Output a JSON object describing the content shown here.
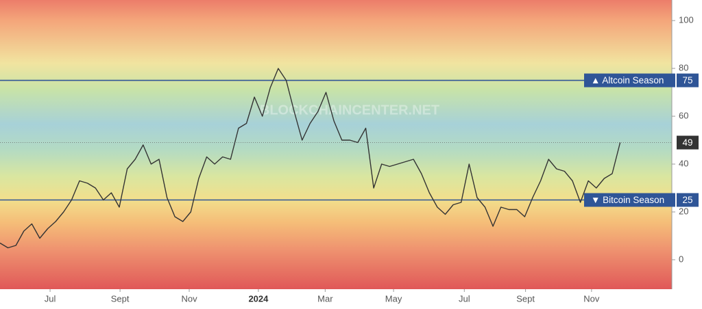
{
  "chart_data": {
    "type": "line",
    "watermark": "BLOCKCHAINCENTER.NET",
    "values": [
      7,
      5,
      6,
      12,
      15,
      9,
      13,
      16,
      20,
      25,
      33,
      32,
      30,
      25,
      28,
      22,
      38,
      42,
      48,
      40,
      42,
      26,
      18,
      16,
      20,
      34,
      43,
      40,
      43,
      42,
      55,
      57,
      68,
      60,
      72,
      80,
      75,
      62,
      50,
      57,
      62,
      70,
      58,
      50,
      50,
      49,
      55,
      30,
      40,
      39,
      40,
      41,
      42,
      36,
      28,
      22,
      19,
      23,
      24,
      40,
      26,
      22,
      14,
      22,
      21,
      21,
      18,
      26,
      33,
      42,
      38,
      37,
      33,
      24,
      33,
      30,
      34,
      36,
      49
    ],
    "color": "#333333",
    "xlim": [
      0,
      84.5
    ],
    "xticks": [
      {
        "value": 6.3,
        "label": "Jul"
      },
      {
        "value": 15.1,
        "label": "Sept"
      },
      {
        "value": 23.8,
        "label": "Nov"
      },
      {
        "value": 32.5,
        "label": "2024",
        "bold": true
      },
      {
        "value": 40.9,
        "label": "Mar"
      },
      {
        "value": 49.5,
        "label": "May"
      },
      {
        "value": 58.4,
        "label": "Jul"
      },
      {
        "value": 66.1,
        "label": "Sept"
      },
      {
        "value": 74.4,
        "label": "Nov"
      }
    ],
    "ylim": [
      -12.3,
      108.6
    ],
    "yticks": [
      0,
      20,
      40,
      60,
      80,
      100
    ],
    "thresholds": [
      {
        "label": "▲ Altcoin Season",
        "value": 75,
        "color": "#2f5597"
      },
      {
        "label": "▼ Bitcoin Season",
        "value": 25,
        "color": "#2f5597"
      }
    ],
    "last_value_color": "#333333"
  }
}
